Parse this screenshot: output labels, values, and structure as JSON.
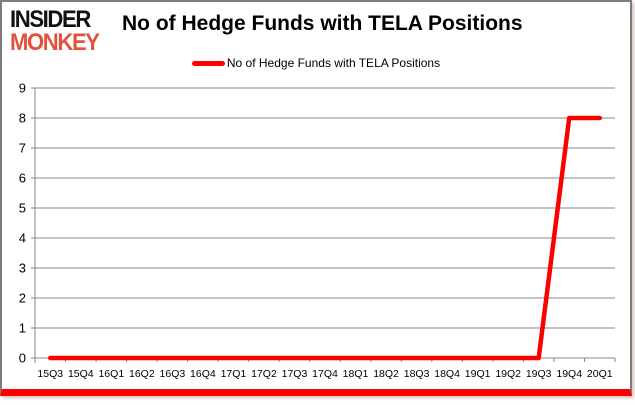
{
  "logo": {
    "line1": "INSIDER",
    "line2": "MONKEY"
  },
  "header": {
    "title": "No of Hedge Funds with TELA Positions"
  },
  "legend": {
    "label": "No of Hedge Funds with TELA Positions"
  },
  "colors": {
    "series": "#ff0000",
    "grid": "#878787",
    "logo_red": "#e2513e",
    "bottom_bar": "#ff0000",
    "text": "#000000"
  },
  "chart_data": {
    "type": "line",
    "title": "No of Hedge Funds with TELA Positions",
    "categories": [
      "15Q3",
      "15Q4",
      "16Q1",
      "16Q2",
      "16Q3",
      "16Q4",
      "17Q1",
      "17Q2",
      "17Q3",
      "17Q4",
      "18Q1",
      "18Q2",
      "18Q3",
      "18Q4",
      "19Q1",
      "19Q2",
      "19Q3",
      "19Q4",
      "20Q1"
    ],
    "series": [
      {
        "name": "No of Hedge Funds with TELA Positions",
        "color": "#ff0000",
        "values": [
          0,
          0,
          0,
          0,
          0,
          0,
          0,
          0,
          0,
          0,
          0,
          0,
          0,
          0,
          0,
          0,
          0,
          8,
          8
        ]
      }
    ],
    "xlabel": "",
    "ylabel": "",
    "ylim": [
      0,
      9
    ],
    "ytick_step": 1,
    "grid": true,
    "legend_position": "top-center"
  }
}
